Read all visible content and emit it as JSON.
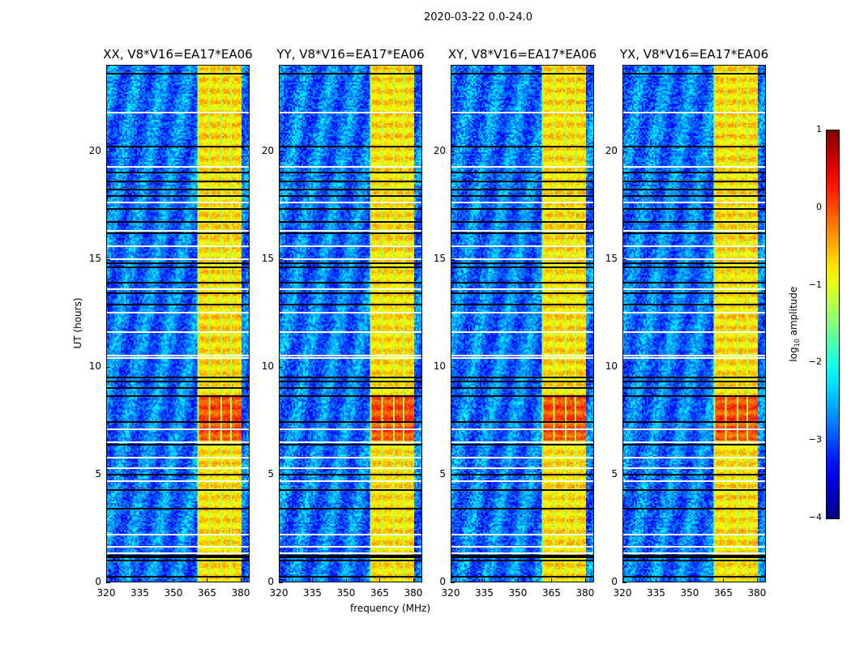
{
  "chart_data": {
    "type": "heatmap",
    "title": "2020-03-22 0.0-24.0",
    "xlabel": "frequency (MHz)",
    "ylabel": "UT (hours)",
    "xlim": [
      320,
      384
    ],
    "ylim": [
      0,
      24
    ],
    "xticks": [
      "320",
      "335",
      "350",
      "365",
      "380"
    ],
    "xtick_values": [
      320,
      335,
      350,
      365,
      380
    ],
    "yticks": [
      "0",
      "5",
      "10",
      "15",
      "20"
    ],
    "ytick_values": [
      0,
      5,
      10,
      15,
      20
    ],
    "panels": [
      {
        "title": "XX, V8*V16=EA17*EA06"
      },
      {
        "title": "YY, V8*V16=EA17*EA06"
      },
      {
        "title": "XY, V8*V16=EA17*EA06"
      },
      {
        "title": "YX, V8*V16=EA17*EA06"
      }
    ],
    "colorbar": {
      "label_prefix": "log",
      "label_sub": "10",
      "label_suffix": " amplitude",
      "range": [
        -4,
        1
      ],
      "ticks": [
        "1",
        "0",
        "−1",
        "−2",
        "−3",
        "−4"
      ],
      "tick_values": [
        1,
        0,
        -1,
        -2,
        -3,
        -4
      ],
      "colormap": "jet"
    },
    "background_level": -2.8,
    "rfi_band_mhz": [
      361,
      380
    ],
    "rfi_band_level": -0.7,
    "rfi_strong_hours": [
      6.6,
      8.6
    ],
    "flagged_hours_black": [
      23.6,
      20.2,
      19.0,
      18.6,
      18.2,
      17.9,
      17.3,
      16.7,
      16.2,
      14.8,
      14.6,
      13.9,
      13.4,
      12.9,
      9.5,
      9.3,
      9.0,
      8.65,
      7.45,
      6.4,
      5.0,
      4.3,
      3.4,
      1.0,
      1.15,
      1.25,
      0.25
    ],
    "gaps_hours_white": [
      21.8,
      19.25,
      17.6,
      16.3,
      15.6,
      15.0,
      13.6,
      12.5,
      11.6,
      10.4,
      10.5,
      7.1,
      6.5,
      5.8,
      5.3,
      4.7,
      2.2,
      1.65,
      1.35
    ]
  }
}
